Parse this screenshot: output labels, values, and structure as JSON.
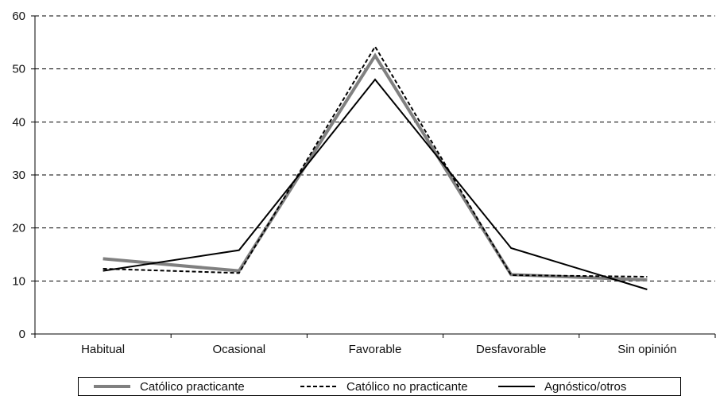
{
  "chart_data": {
    "type": "line",
    "title": "",
    "xlabel": "",
    "ylabel": "",
    "categories": [
      "Habitual",
      "Ocasional",
      "Favorable",
      "Desfavorable",
      "Sin opinión"
    ],
    "ylim": [
      0,
      60
    ],
    "yticks": [
      0,
      10,
      20,
      30,
      40,
      50,
      60
    ],
    "grid": "horizontal dashed",
    "legend_position": "bottom",
    "series": [
      {
        "name": "Católico practicante",
        "values": [
          14.2,
          11.9,
          52.5,
          11.2,
          10.2
        ],
        "color": "#808080",
        "style": "solid-thick"
      },
      {
        "name": "Católico no practicante",
        "values": [
          12.3,
          11.5,
          54.2,
          11.1,
          10.8
        ],
        "color": "#000000",
        "style": "dashed"
      },
      {
        "name": "Agnóstico/otros",
        "values": [
          11.9,
          15.8,
          48.0,
          16.2,
          8.4
        ],
        "color": "#000000",
        "style": "solid"
      }
    ]
  }
}
